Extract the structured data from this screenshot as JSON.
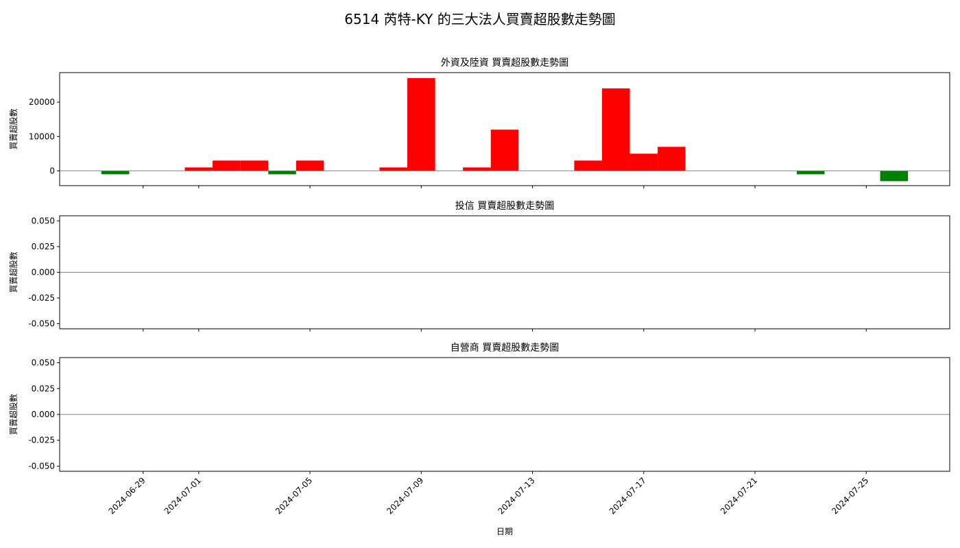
{
  "figure_title": "6514 芮特-KY 的三大法人買賣超股數走勢圖",
  "colors": {
    "positive": "#ff0000",
    "negative": "#008000",
    "zero_line": "#808080",
    "axes": "#000000"
  },
  "chart_data": [
    {
      "type": "bar",
      "title": "外資及陸資 買賣超股數走勢圖",
      "ylabel": "買賣超股數",
      "xlabel": "",
      "ylim": [
        -4300,
        28600
      ],
      "yticks": [
        0,
        10000,
        20000
      ],
      "ytick_labels": [
        "0",
        "10000",
        "20000"
      ],
      "xlim": [
        "2024-06-26",
        "2024-07-28"
      ],
      "x": [
        "2024-06-28",
        "2024-07-01",
        "2024-07-02",
        "2024-07-03",
        "2024-07-04",
        "2024-07-05",
        "2024-07-08",
        "2024-07-09",
        "2024-07-11",
        "2024-07-12",
        "2024-07-15",
        "2024-07-16",
        "2024-07-17",
        "2024-07-18",
        "2024-07-23",
        "2024-07-26"
      ],
      "values": [
        -1000,
        1000,
        3000,
        3000,
        -1000,
        3000,
        1000,
        27000,
        1000,
        12000,
        3000,
        24000,
        5000,
        7000,
        -1000,
        -3000
      ],
      "grid": false
    },
    {
      "type": "bar",
      "title": "投信 買賣超股數走勢圖",
      "ylabel": "買賣超股數",
      "xlabel": "",
      "ylim": [
        -0.055,
        0.055
      ],
      "yticks": [
        -0.05,
        -0.025,
        0,
        0.025,
        0.05
      ],
      "ytick_labels": [
        "-0.050",
        "-0.025",
        "0.000",
        "0.025",
        "0.050"
      ],
      "xlim": [
        "2024-06-26",
        "2024-07-28"
      ],
      "x": [],
      "values": [],
      "grid": false
    },
    {
      "type": "bar",
      "title": "自營商 買賣超股數走勢圖",
      "ylabel": "買賣超股數",
      "xlabel": "日期",
      "ylim": [
        -0.055,
        0.055
      ],
      "yticks": [
        -0.05,
        -0.025,
        0,
        0.025,
        0.05
      ],
      "ytick_labels": [
        "-0.050",
        "-0.025",
        "0.000",
        "0.025",
        "0.050"
      ],
      "xlim": [
        "2024-06-26",
        "2024-07-28"
      ],
      "x": [],
      "values": [],
      "grid": false
    }
  ],
  "x_ticks": [
    "2024-06-29",
    "2024-07-01",
    "2024-07-05",
    "2024-07-09",
    "2024-07-13",
    "2024-07-17",
    "2024-07-21",
    "2024-07-25"
  ]
}
